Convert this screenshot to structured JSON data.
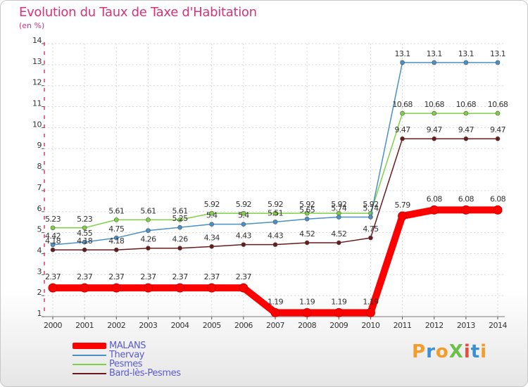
{
  "header": {
    "title": "Evolution du Taux de Taxe d'Habitation",
    "subtitle": "(en %)"
  },
  "logo": {
    "text": "ProXiti",
    "colors": [
      "#f39c2a",
      "#3b8fd6",
      "#f39c2a",
      "#6cc04a",
      "#e94b3c",
      "#3b8fd6",
      "#f39c2a"
    ]
  },
  "chart_data": {
    "type": "line",
    "x": [
      "2000",
      "2001",
      "2002",
      "2003",
      "2004",
      "2005",
      "2006",
      "2007",
      "2008",
      "2009",
      "2010",
      "2011",
      "2012",
      "2013",
      "2014"
    ],
    "ylim": [
      1,
      14
    ],
    "yticks": [
      1,
      2,
      3,
      4,
      5,
      6,
      7,
      8,
      9,
      10,
      11,
      12,
      13,
      14
    ],
    "grid": true,
    "legend_position": "bottom-left",
    "series": [
      {
        "name": "MALANS",
        "color": "#ff0000",
        "values": [
          2.37,
          2.37,
          2.37,
          2.37,
          2.37,
          2.37,
          2.37,
          1.19,
          1.19,
          1.19,
          1.19,
          5.79,
          6.08,
          6.08,
          6.08
        ],
        "labels": [
          "2.37",
          "2.37",
          "2.37",
          "2.37",
          "2.37",
          "2.37",
          "2.37",
          "1.19",
          "1.19",
          "1.19",
          "1.19",
          "5.79",
          "6.08",
          "6.08",
          "6.08"
        ]
      },
      {
        "name": "Thervay",
        "color": "#4a90c8",
        "values": [
          4.42,
          4.55,
          4.75,
          5.1,
          5.25,
          5.4,
          5.4,
          5.51,
          5.65,
          5.74,
          5.74,
          13.1,
          13.1,
          13.1,
          13.1
        ],
        "labels": [
          "4.42",
          "4.55",
          "4.75",
          "",
          "5.25",
          "5.4",
          "5.4",
          "5.51",
          "5.65",
          "5.74",
          "5.74",
          "13.1",
          "13.1",
          "13.1",
          "13.1"
        ]
      },
      {
        "name": "Pesmes",
        "color": "#7fd144",
        "values": [
          5.23,
          5.23,
          5.61,
          5.61,
          5.61,
          5.92,
          5.92,
          5.92,
          5.92,
          5.92,
          5.92,
          10.68,
          10.68,
          10.68,
          10.68
        ],
        "labels": [
          "5.23",
          "5.23",
          "5.61",
          "5.61",
          "5.61",
          "5.92",
          "5.92",
          "5.92",
          "5.92",
          "5.92",
          "5.92",
          "10.68",
          "10.68",
          "10.68",
          "10.68"
        ]
      },
      {
        "name": "Bard-lès-Pesmes",
        "color": "#6b1a1a",
        "values": [
          4.18,
          4.18,
          4.18,
          4.26,
          4.26,
          4.34,
          4.43,
          4.43,
          4.52,
          4.52,
          4.75,
          9.47,
          9.47,
          9.47,
          9.47
        ],
        "labels": [
          "4.18",
          "4.18",
          "4.18",
          "4.26",
          "4.26",
          "4.34",
          "4.43",
          "4.43",
          "4.52",
          "4.52",
          "4.75",
          "9.47",
          "9.47",
          "9.47",
          "9.47"
        ]
      }
    ]
  }
}
